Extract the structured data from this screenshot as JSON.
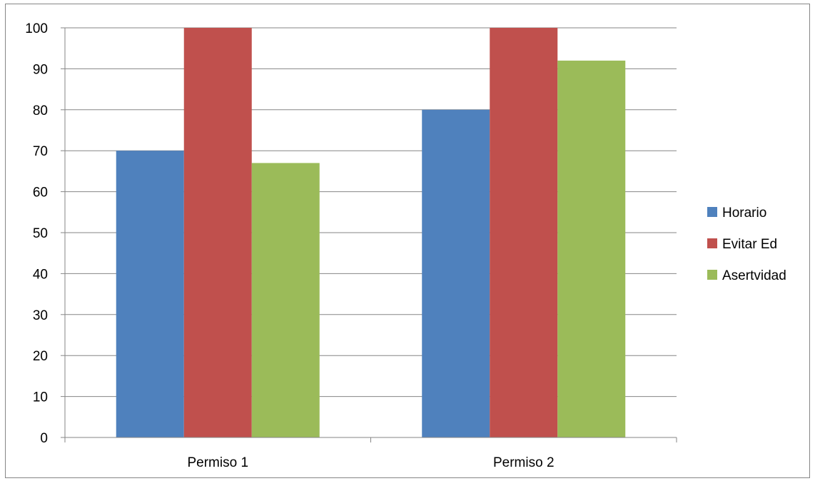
{
  "chart_data": {
    "type": "bar",
    "title": "",
    "xlabel": "",
    "ylabel": "",
    "categories": [
      "Permiso 1",
      "Permiso 2"
    ],
    "series": [
      {
        "name": "Horario",
        "values": [
          70,
          80
        ],
        "color": "#4F81BD"
      },
      {
        "name": "Evitar Ed",
        "values": [
          100,
          100
        ],
        "color": "#C0504D"
      },
      {
        "name": "Asertvidad",
        "values": [
          67,
          92
        ],
        "color": "#9BBB59"
      }
    ],
    "ylim": [
      0,
      100
    ],
    "yticks": [
      0,
      10,
      20,
      30,
      40,
      50,
      60,
      70,
      80,
      90,
      100
    ],
    "grid": true,
    "legend_position": "right",
    "gridline_color": "#868686",
    "axis_color": "#868686"
  }
}
